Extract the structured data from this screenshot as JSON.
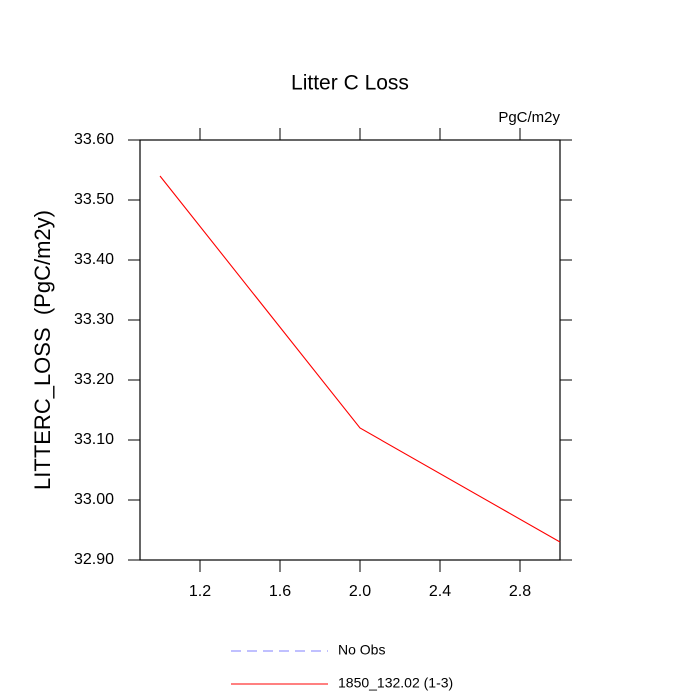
{
  "chart_data": {
    "type": "line",
    "title": "Litter C Loss",
    "units": "PgC/m2y",
    "y_label": "LITTERC_LOSS  (PgC/m2y)",
    "x": [
      1,
      2,
      3
    ],
    "series": [
      {
        "name": "No Obs",
        "color": "#8080ff",
        "dash": true,
        "values": [
          null,
          null,
          null
        ]
      },
      {
        "name": "1850_132.02 (1-3)",
        "color": "#ff0000",
        "values": [
          33.54,
          33.12,
          32.93
        ]
      }
    ],
    "xlim": [
      0.9,
      3.0
    ],
    "xticks": [
      1.2,
      1.6,
      {
        "value": 2,
        "label": "2.0"
      },
      2.4,
      2.8
    ],
    "ylim": [
      32.9,
      33.6
    ],
    "yticks": [
      {
        "value": 32.9,
        "label": "32.90"
      },
      {
        "value": 33.0,
        "label": "33.00"
      },
      {
        "value": 33.1,
        "label": "33.10"
      },
      {
        "value": 33.2,
        "label": "33.20"
      },
      {
        "value": 33.3,
        "label": "33.30"
      },
      {
        "value": 33.4,
        "label": "33.40"
      },
      {
        "value": 33.5,
        "label": "33.50"
      },
      {
        "value": 33.6,
        "label": "33.60"
      }
    ],
    "grid": false
  }
}
